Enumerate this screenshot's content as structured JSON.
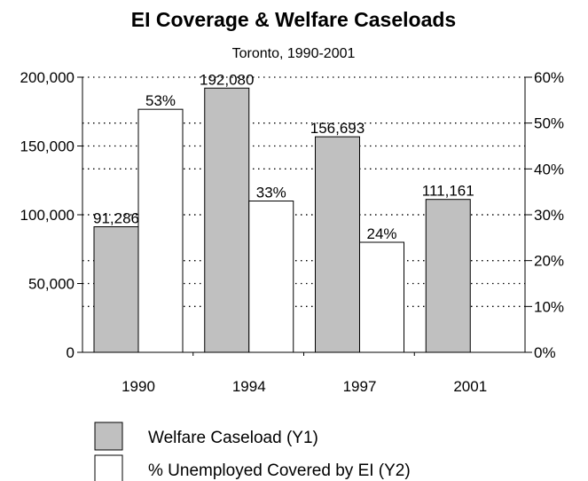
{
  "chart_data": {
    "type": "bar",
    "title": "EI Coverage & Welfare Caseloads",
    "subtitle": "Toronto, 1990-2001",
    "categories": [
      "1990",
      "1994",
      "1997",
      "2001"
    ],
    "series": [
      {
        "name": "Welfare Caseload (Y1)",
        "axis": "left",
        "color": "#c0c0c0",
        "values": [
          91286,
          192080,
          156693,
          111161
        ],
        "labels": [
          "91,286",
          "192,080",
          "156,693",
          "111,161"
        ]
      },
      {
        "name": "% Unemployed Covered by EI (Y2)",
        "axis": "right",
        "color": "#ffffff",
        "values": [
          53,
          33,
          24,
          null
        ],
        "labels": [
          "53%",
          "33%",
          "24%",
          ""
        ]
      }
    ],
    "y_left": {
      "min": 0,
      "max": 200000,
      "ticks": [
        0,
        50000,
        100000,
        150000,
        200000
      ],
      "tick_labels": [
        "0",
        "50,000",
        "100,000",
        "150,000",
        "200,000"
      ]
    },
    "y_right": {
      "min": 0,
      "max": 60,
      "ticks": [
        0,
        10,
        20,
        30,
        40,
        50,
        60
      ],
      "tick_labels": [
        "0%",
        "10%",
        "20%",
        "30%",
        "40%",
        "50%",
        "60%"
      ]
    },
    "grid": "dotted",
    "legend_position": "bottom"
  }
}
